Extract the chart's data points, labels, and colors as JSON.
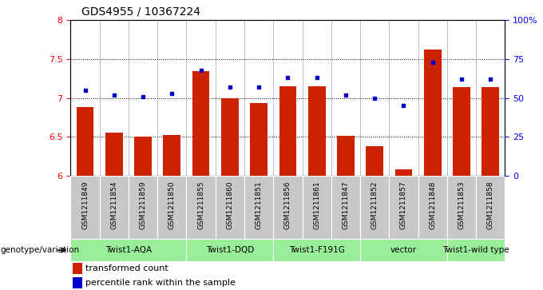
{
  "title": "GDS4955 / 10367224",
  "samples": [
    "GSM1211849",
    "GSM1211854",
    "GSM1211859",
    "GSM1211850",
    "GSM1211855",
    "GSM1211860",
    "GSM1211851",
    "GSM1211856",
    "GSM1211861",
    "GSM1211847",
    "GSM1211852",
    "GSM1211857",
    "GSM1211848",
    "GSM1211853",
    "GSM1211858"
  ],
  "red_values": [
    6.88,
    6.55,
    6.5,
    6.52,
    7.35,
    7.0,
    6.93,
    7.15,
    7.15,
    6.51,
    6.38,
    6.08,
    7.62,
    7.14,
    7.14
  ],
  "blue_values": [
    55,
    52,
    51,
    53,
    68,
    57,
    57,
    63,
    63,
    52,
    50,
    45,
    73,
    62,
    62
  ],
  "group_boundaries": [
    {
      "label": "Twist1-AQA",
      "start": 0,
      "end": 3
    },
    {
      "label": "Twist1-DQD",
      "start": 4,
      "end": 6
    },
    {
      "label": "Twist1-F191G",
      "start": 7,
      "end": 9
    },
    {
      "label": "vector",
      "start": 10,
      "end": 12
    },
    {
      "label": "Twist1-wild type",
      "start": 13,
      "end": 14
    }
  ],
  "ylim_left": [
    6.0,
    8.0
  ],
  "ylim_right": [
    0,
    100
  ],
  "yticks_left": [
    6.0,
    6.5,
    7.0,
    7.5,
    8.0
  ],
  "ytick_labels_left": [
    "6",
    "6.5",
    "7",
    "7.5",
    "8"
  ],
  "yticks_right": [
    0,
    25,
    50,
    75,
    100
  ],
  "ytick_labels_right": [
    "0",
    "25",
    "50",
    "75",
    "100%"
  ],
  "bar_color": "#cc2200",
  "dot_color": "#0000cc",
  "grid_values": [
    6.5,
    7.0,
    7.5
  ],
  "legend_red": "transformed count",
  "legend_blue": "percentile rank within the sample",
  "xlabel_group": "genotype/variation",
  "gray_box_color": "#c8c8c8",
  "green_box_color": "#99ee99"
}
